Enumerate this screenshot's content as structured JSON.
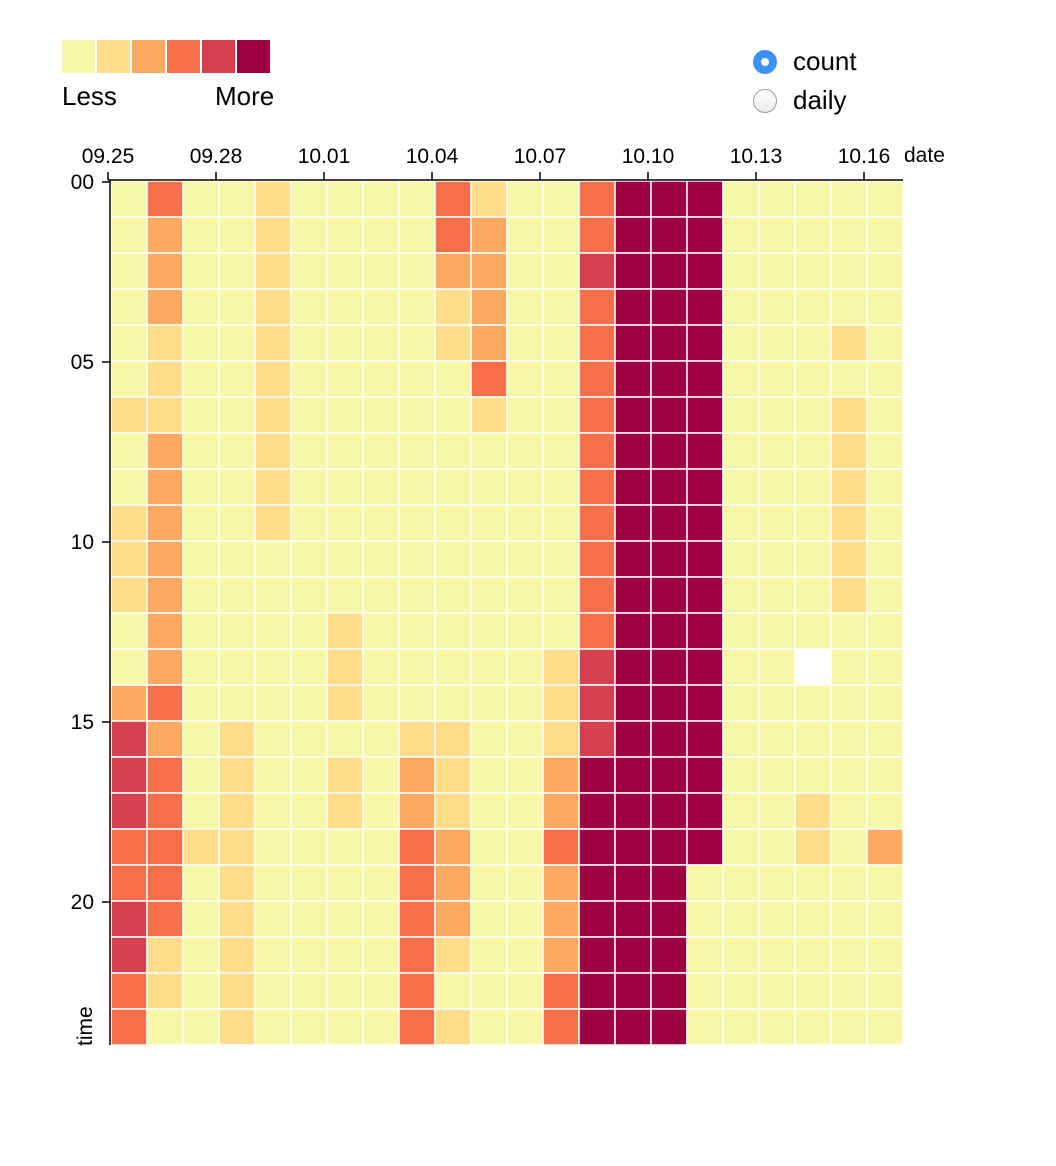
{
  "legend": {
    "less": "Less",
    "more": "More",
    "colors": [
      "#f6f8a8",
      "#fddd8a",
      "#fcaa5f",
      "#f5704a",
      "#d53f4e",
      "#9c0040"
    ]
  },
  "controls": {
    "options": [
      {
        "label": "count",
        "checked": true
      },
      {
        "label": "daily",
        "checked": false
      }
    ]
  },
  "chart_data": {
    "type": "heatmap",
    "xlabel": "date",
    "ylabel": "time",
    "x_ticks": [
      "09.25",
      "09.28",
      "10.01",
      "10.04",
      "10.07",
      "10.10",
      "10.13",
      "10.16"
    ],
    "y_ticks": [
      "00",
      "05",
      "10",
      "15",
      "20"
    ],
    "columns": [
      "09.25",
      "09.26",
      "09.27",
      "09.28",
      "09.29",
      "09.30",
      "10.01",
      "10.02",
      "10.03",
      "10.04",
      "10.05",
      "10.06",
      "10.07",
      "10.08",
      "10.09",
      "10.10",
      "10.11",
      "10.12",
      "10.13",
      "10.14",
      "10.15",
      "10.16"
    ],
    "rows": [
      "00",
      "01",
      "02",
      "03",
      "04",
      "05",
      "06",
      "07",
      "08",
      "09",
      "10",
      "11",
      "12",
      "13",
      "14",
      "15",
      "16",
      "17",
      "18",
      "19",
      "20",
      "21",
      "22",
      "23"
    ],
    "levels": [
      "Less",
      "",
      "",
      "",
      "",
      "More"
    ],
    "values": [
      [
        0,
        3,
        0,
        0,
        1,
        0,
        0,
        0,
        0,
        3,
        1,
        0,
        0,
        3,
        5,
        5,
        5,
        0,
        0,
        0,
        0,
        0
      ],
      [
        0,
        2,
        0,
        0,
        1,
        0,
        0,
        0,
        0,
        3,
        2,
        0,
        0,
        3,
        5,
        5,
        5,
        0,
        0,
        0,
        0,
        0
      ],
      [
        0,
        2,
        0,
        0,
        1,
        0,
        0,
        0,
        0,
        2,
        2,
        0,
        0,
        4,
        5,
        5,
        5,
        0,
        0,
        0,
        0,
        0
      ],
      [
        0,
        2,
        0,
        0,
        1,
        0,
        0,
        0,
        0,
        1,
        2,
        0,
        0,
        3,
        5,
        5,
        5,
        0,
        0,
        0,
        0,
        0
      ],
      [
        0,
        1,
        0,
        0,
        1,
        0,
        0,
        0,
        0,
        1,
        2,
        0,
        0,
        3,
        5,
        5,
        5,
        0,
        0,
        0,
        1,
        0
      ],
      [
        0,
        1,
        0,
        0,
        1,
        0,
        0,
        0,
        0,
        0,
        3,
        0,
        0,
        3,
        5,
        5,
        5,
        0,
        0,
        0,
        0,
        0
      ],
      [
        1,
        1,
        0,
        0,
        1,
        0,
        0,
        0,
        0,
        0,
        1,
        0,
        0,
        3,
        5,
        5,
        5,
        0,
        0,
        0,
        1,
        0
      ],
      [
        0,
        2,
        0,
        0,
        1,
        0,
        0,
        0,
        0,
        0,
        0,
        0,
        0,
        3,
        5,
        5,
        5,
        0,
        0,
        0,
        1,
        0
      ],
      [
        0,
        2,
        0,
        0,
        1,
        0,
        0,
        0,
        0,
        0,
        0,
        0,
        0,
        3,
        5,
        5,
        5,
        0,
        0,
        0,
        1,
        0
      ],
      [
        1,
        2,
        0,
        0,
        1,
        0,
        0,
        0,
        0,
        0,
        0,
        0,
        0,
        3,
        5,
        5,
        5,
        0,
        0,
        0,
        1,
        0
      ],
      [
        1,
        2,
        0,
        0,
        0,
        0,
        0,
        0,
        0,
        0,
        0,
        0,
        0,
        3,
        5,
        5,
        5,
        0,
        0,
        0,
        1,
        0
      ],
      [
        1,
        2,
        0,
        0,
        0,
        0,
        0,
        0,
        0,
        0,
        0,
        0,
        0,
        3,
        5,
        5,
        5,
        0,
        0,
        0,
        1,
        0
      ],
      [
        0,
        2,
        0,
        0,
        0,
        0,
        1,
        0,
        0,
        0,
        0,
        0,
        0,
        3,
        5,
        5,
        5,
        0,
        0,
        0,
        0,
        0
      ],
      [
        0,
        2,
        0,
        0,
        0,
        0,
        1,
        0,
        0,
        0,
        0,
        0,
        1,
        4,
        5,
        5,
        5,
        0,
        0,
        null,
        0,
        0
      ],
      [
        2,
        3,
        0,
        0,
        0,
        0,
        1,
        0,
        0,
        0,
        0,
        0,
        1,
        4,
        5,
        5,
        5,
        0,
        0,
        0,
        0,
        0
      ],
      [
        4,
        2,
        0,
        1,
        0,
        0,
        0,
        0,
        1,
        1,
        0,
        0,
        1,
        4,
        5,
        5,
        5,
        0,
        0,
        0,
        0,
        0
      ],
      [
        4,
        3,
        0,
        1,
        0,
        0,
        1,
        0,
        2,
        1,
        0,
        0,
        2,
        5,
        5,
        5,
        5,
        0,
        0,
        0,
        0,
        0
      ],
      [
        4,
        3,
        0,
        1,
        0,
        0,
        1,
        0,
        2,
        1,
        0,
        0,
        2,
        5,
        5,
        5,
        5,
        0,
        0,
        1,
        0,
        0
      ],
      [
        3,
        3,
        1,
        1,
        0,
        0,
        0,
        0,
        3,
        2,
        0,
        0,
        3,
        5,
        5,
        5,
        5,
        0,
        0,
        1,
        0,
        2
      ],
      [
        3,
        3,
        0,
        1,
        0,
        0,
        0,
        0,
        3,
        2,
        0,
        0,
        2,
        5,
        5,
        5,
        0,
        0,
        0,
        0,
        0,
        0
      ],
      [
        4,
        3,
        0,
        1,
        0,
        0,
        0,
        0,
        3,
        2,
        0,
        0,
        2,
        5,
        5,
        5,
        0,
        0,
        0,
        0,
        0,
        0
      ],
      [
        4,
        1,
        0,
        1,
        0,
        0,
        0,
        0,
        3,
        1,
        0,
        0,
        2,
        5,
        5,
        5,
        0,
        0,
        0,
        0,
        0,
        0
      ],
      [
        3,
        1,
        0,
        1,
        0,
        0,
        0,
        0,
        3,
        0,
        0,
        0,
        3,
        5,
        5,
        5,
        0,
        0,
        0,
        0,
        0,
        0
      ],
      [
        3,
        0,
        0,
        1,
        0,
        0,
        0,
        0,
        3,
        1,
        0,
        0,
        3,
        5,
        5,
        5,
        0,
        0,
        0,
        0,
        0,
        0
      ]
    ]
  }
}
